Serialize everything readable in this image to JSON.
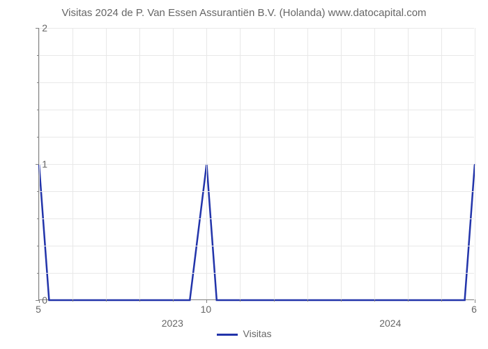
{
  "chart": {
    "type": "line",
    "title": "Visitas 2024 de P. Van Essen Assurantiën B.V. (Holanda) www.datocapital.com",
    "title_fontsize": 15,
    "title_color": "#666666",
    "background_color": "#ffffff",
    "grid_color": "#e8e8e8",
    "axis_color": "#808080",
    "tick_label_color": "#666666",
    "tick_label_fontsize": 14,
    "year_label_fontsize": 14,
    "line_color": "#2234aa",
    "line_width": 2.5,
    "ylim": [
      0,
      2
    ],
    "ytick_major": [
      0,
      1,
      2
    ],
    "ytick_minor_count": 4,
    "xlim_months": [
      5,
      18
    ],
    "xtick_labels": [
      {
        "pos_month": 5,
        "text": "5"
      },
      {
        "pos_month": 10,
        "text": "10"
      },
      {
        "pos_month": 18,
        "text": "6"
      }
    ],
    "x_year_labels": [
      {
        "pos_month": 9,
        "text": "2023"
      },
      {
        "pos_month": 15.5,
        "text": "2024"
      }
    ],
    "x_minor_ticks_months": [
      5,
      6,
      7,
      8,
      9,
      10,
      11,
      12,
      13,
      14,
      15,
      16,
      17,
      18
    ],
    "data_months": [
      5,
      5.3,
      5.6,
      6,
      6.5,
      7,
      7.5,
      8,
      8.5,
      9,
      9.5,
      10,
      10.3,
      10.6,
      11,
      11.5,
      12,
      12.5,
      13,
      13.5,
      14,
      14.5,
      15,
      15.5,
      16,
      16.5,
      17,
      17.7,
      18
    ],
    "data_values": [
      1,
      0,
      0,
      0,
      0,
      0,
      0,
      0,
      0,
      0,
      0,
      1,
      0,
      0,
      0,
      0,
      0,
      0,
      0,
      0,
      0,
      0,
      0,
      0,
      0,
      0,
      0,
      0,
      1
    ],
    "legend": {
      "label": "Visitas",
      "fontsize": 14
    }
  }
}
